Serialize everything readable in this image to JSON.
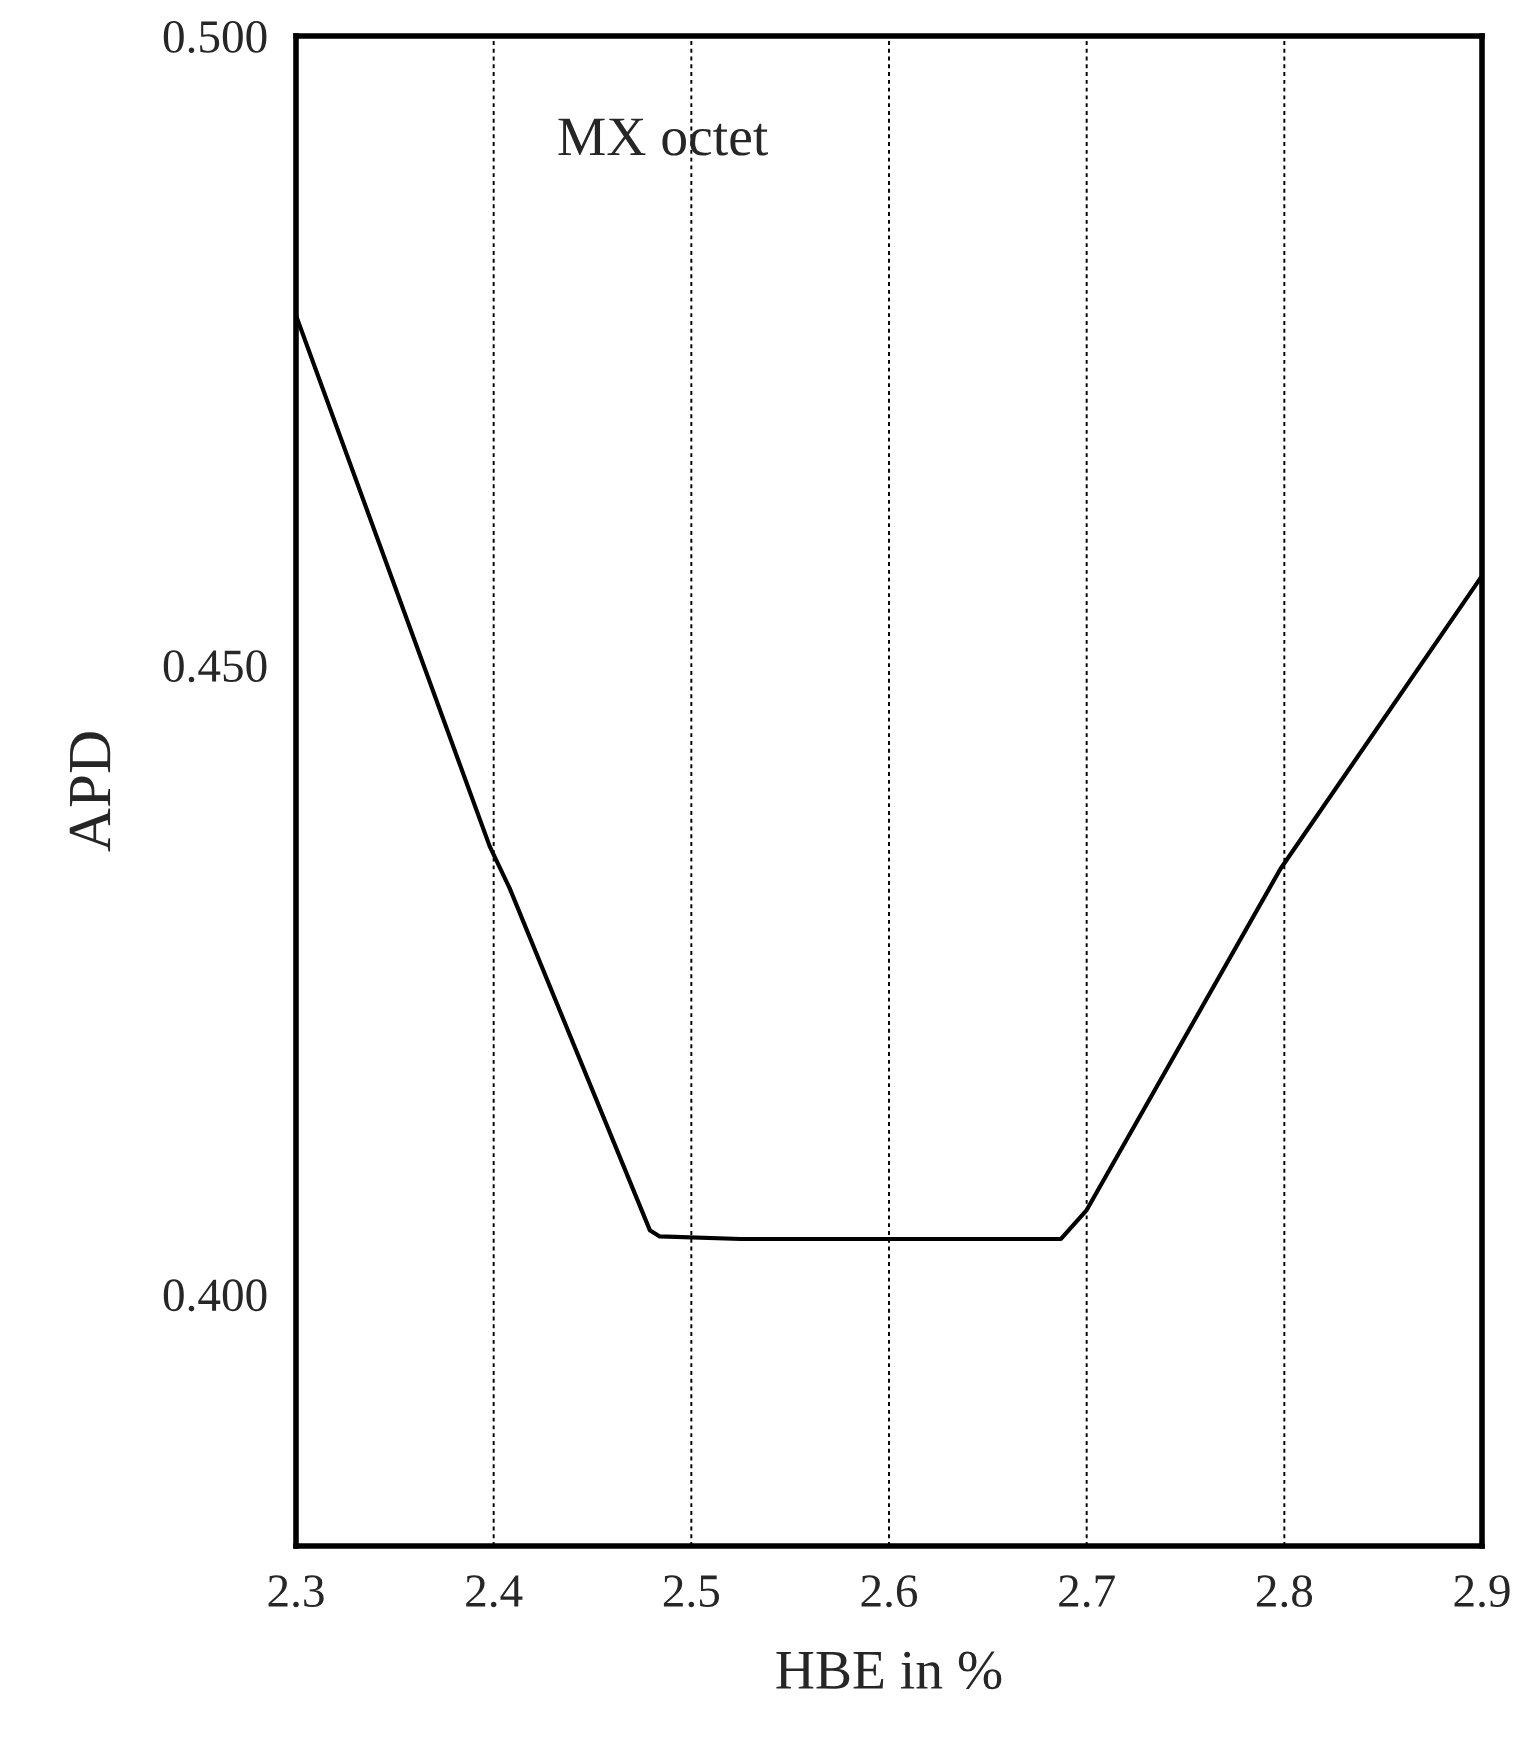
{
  "chart_data": {
    "type": "line",
    "xlabel": "HBE in %",
    "ylabel": "APD",
    "annotations": [
      "MX octet"
    ],
    "series": [
      {
        "color": "#000000",
        "x": [
          2.3,
          2.398,
          2.408,
          2.479,
          2.484,
          2.525,
          2.6,
          2.687,
          2.7,
          2.798,
          2.9
        ],
        "values": [
          0.4778,
          0.4356,
          0.4323,
          0.4051,
          0.4046,
          0.4044,
          0.4044,
          0.4044,
          0.4067,
          0.4338,
          0.4571
        ]
      }
    ],
    "xlim": [
      2.3,
      2.9
    ],
    "xticks": [
      2.3,
      2.4,
      2.5,
      2.6,
      2.7,
      2.8,
      2.9
    ],
    "ylim": [
      0.38,
      0.5
    ],
    "yticks": [
      {
        "value": 0.4,
        "label": "0.400"
      },
      {
        "value": 0.45,
        "label": "0.450"
      },
      {
        "value": 0.5,
        "label": "0.500"
      }
    ],
    "grid": "x",
    "marker": "none",
    "line_style": "solid"
  }
}
